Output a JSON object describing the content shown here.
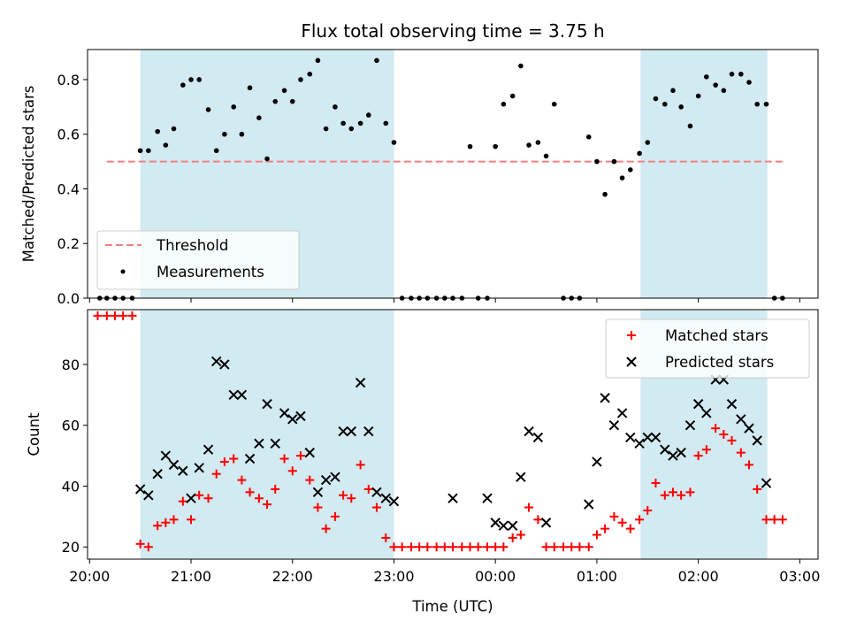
{
  "chart_data": [
    {
      "type": "scatter",
      "title": "Flux total observing time = 3.75 h",
      "ylabel": "Matched/Predicted stars",
      "ylim": [
        0,
        0.91
      ],
      "yticks": [
        0.0,
        0.2,
        0.4,
        0.6,
        0.8
      ],
      "ytick_labels": [
        "0.0",
        "0.2",
        "0.4",
        "0.6",
        "0.8"
      ],
      "xlim_hours": [
        19.98,
        27.18
      ],
      "threshold": {
        "name": "Threshold",
        "y": 0.5,
        "x_start": 20.17,
        "x_end": 26.85,
        "color": "#f08080"
      },
      "shaded_intervals": [
        [
          20.5,
          23.0
        ],
        [
          25.43,
          26.68
        ]
      ],
      "shade_color": "#add8e6",
      "series": [
        {
          "name": "Measurements",
          "color": "#000000",
          "x": [
            20.1,
            20.17,
            20.25,
            20.33,
            20.42,
            20.5,
            20.58,
            20.67,
            20.75,
            20.83,
            20.92,
            21.0,
            21.08,
            21.17,
            21.25,
            21.33,
            21.42,
            21.5,
            21.58,
            21.67,
            21.75,
            21.83,
            21.92,
            22.0,
            22.08,
            22.17,
            22.25,
            22.33,
            22.42,
            22.5,
            22.58,
            22.67,
            22.75,
            22.83,
            22.92,
            23.0,
            23.08,
            23.17,
            23.25,
            23.33,
            23.42,
            23.5,
            23.58,
            23.67,
            23.75,
            23.83,
            23.92,
            24.0,
            24.08,
            24.17,
            24.25,
            24.33,
            24.42,
            24.5,
            24.58,
            24.67,
            24.75,
            24.83,
            24.92,
            25.0,
            25.08,
            25.17,
            25.25,
            25.33,
            25.42,
            25.5,
            25.58,
            25.67,
            25.75,
            25.83,
            25.92,
            26.0,
            26.08,
            26.17,
            26.25,
            26.33,
            26.42,
            26.5,
            26.58,
            26.67,
            26.75,
            26.83
          ],
          "y": [
            0,
            0,
            0,
            0,
            0,
            0.54,
            0.54,
            0.61,
            0.56,
            0.62,
            0.78,
            0.8,
            0.8,
            0.69,
            0.54,
            0.6,
            0.7,
            0.6,
            0.77,
            0.66,
            0.51,
            0.72,
            0.76,
            0.72,
            0.8,
            0.82,
            0.87,
            0.62,
            0.7,
            0.64,
            0.62,
            0.64,
            0.67,
            0.87,
            0.64,
            0.57,
            0,
            0,
            0,
            0,
            0,
            0,
            0,
            0,
            0.555,
            0,
            0,
            0.555,
            0.71,
            0.74,
            0.85,
            0.56,
            0.57,
            0.52,
            0.71,
            0,
            0,
            0,
            0.59,
            0.5,
            0.38,
            0.5,
            0.44,
            0.47,
            0.53,
            0.57,
            0.73,
            0.71,
            0.76,
            0.7,
            0.63,
            0.74,
            0.81,
            0.78,
            0.76,
            0.82,
            0.82,
            0.79,
            0.71,
            0.71,
            0,
            0
          ]
        }
      ]
    },
    {
      "type": "scatter",
      "xlabel": "Time (UTC)",
      "ylabel": "Count",
      "ylim": [
        16,
        98
      ],
      "yticks": [
        20,
        40,
        60,
        80
      ],
      "ytick_labels": [
        "20",
        "40",
        "60",
        "80"
      ],
      "xlim_hours": [
        19.98,
        27.18
      ],
      "xticks_hours": [
        20,
        21,
        22,
        23,
        24,
        25,
        26,
        27
      ],
      "xtick_labels": [
        "20:00",
        "21:00",
        "22:00",
        "23:00",
        "00:00",
        "01:00",
        "02:00",
        "03:00"
      ],
      "shaded_intervals": [
        [
          20.5,
          23.0
        ],
        [
          25.43,
          26.68
        ]
      ],
      "shade_color": "#add8e6",
      "series": [
        {
          "name": "Matched stars",
          "marker": "+",
          "color": "#ff0000",
          "x": [
            20.08,
            20.17,
            20.25,
            20.33,
            20.42,
            20.5,
            20.58,
            20.67,
            20.75,
            20.83,
            20.92,
            21.0,
            21.08,
            21.17,
            21.25,
            21.33,
            21.42,
            21.5,
            21.58,
            21.67,
            21.75,
            21.83,
            21.92,
            22.0,
            22.08,
            22.17,
            22.25,
            22.33,
            22.42,
            22.5,
            22.58,
            22.67,
            22.75,
            22.83,
            22.92,
            23.0,
            23.08,
            23.17,
            23.25,
            23.33,
            23.42,
            23.5,
            23.58,
            23.67,
            23.75,
            23.83,
            23.92,
            24.0,
            24.08,
            24.17,
            24.25,
            24.33,
            24.42,
            24.5,
            24.58,
            24.67,
            24.75,
            24.83,
            24.92,
            25.0,
            25.08,
            25.17,
            25.25,
            25.33,
            25.42,
            25.5,
            25.58,
            25.67,
            25.75,
            25.83,
            25.92,
            26.0,
            26.08,
            26.17,
            26.25,
            26.33,
            26.42,
            26.5,
            26.58,
            26.67,
            26.75,
            26.83
          ],
          "y": [
            96,
            96,
            96,
            96,
            96,
            21,
            20,
            27,
            28,
            29,
            35,
            29,
            37,
            36,
            44,
            48,
            49,
            42,
            38,
            36,
            34,
            39,
            49,
            45,
            50,
            42,
            33,
            26,
            30,
            37,
            36,
            47,
            39,
            33,
            23,
            20,
            20,
            20,
            20,
            20,
            20,
            20,
            20,
            20,
            20,
            20,
            20,
            20,
            20,
            23,
            24,
            33,
            29,
            20,
            20,
            20,
            20,
            20,
            20,
            24,
            26,
            30,
            28,
            26,
            29,
            32,
            41,
            37,
            38,
            37,
            38,
            50,
            52,
            59,
            57,
            55,
            51,
            47,
            39,
            29,
            29,
            29
          ]
        },
        {
          "name": "Predicted stars",
          "marker": "x",
          "color": "#000000",
          "x": [
            20.5,
            20.58,
            20.67,
            20.75,
            20.83,
            20.92,
            21.0,
            21.08,
            21.17,
            21.25,
            21.33,
            21.42,
            21.5,
            21.58,
            21.67,
            21.75,
            21.83,
            21.92,
            22.0,
            22.08,
            22.17,
            22.25,
            22.33,
            22.42,
            22.5,
            22.58,
            22.67,
            22.75,
            22.83,
            22.92,
            23.0,
            23.58,
            23.92,
            24.0,
            24.08,
            24.17,
            24.25,
            24.33,
            24.42,
            24.5,
            24.92,
            25.0,
            25.08,
            25.17,
            25.25,
            25.33,
            25.42,
            25.5,
            25.58,
            25.67,
            25.75,
            25.83,
            25.92,
            26.0,
            26.08,
            26.17,
            26.25,
            26.33,
            26.42,
            26.5,
            26.58,
            26.67
          ],
          "y": [
            39,
            37,
            44,
            50,
            47,
            45,
            36,
            46,
            52,
            81,
            80,
            70,
            70,
            49,
            54,
            67,
            54,
            64,
            62,
            63,
            51,
            38,
            42,
            43,
            58,
            58,
            74,
            58,
            38,
            36,
            35,
            36,
            36,
            28,
            27,
            27,
            43,
            58,
            56,
            28,
            34,
            48,
            69,
            60,
            64,
            56,
            54,
            56,
            56,
            52,
            50,
            51,
            60,
            67,
            64,
            75,
            75,
            67,
            62,
            59,
            55,
            41
          ]
        }
      ]
    }
  ]
}
